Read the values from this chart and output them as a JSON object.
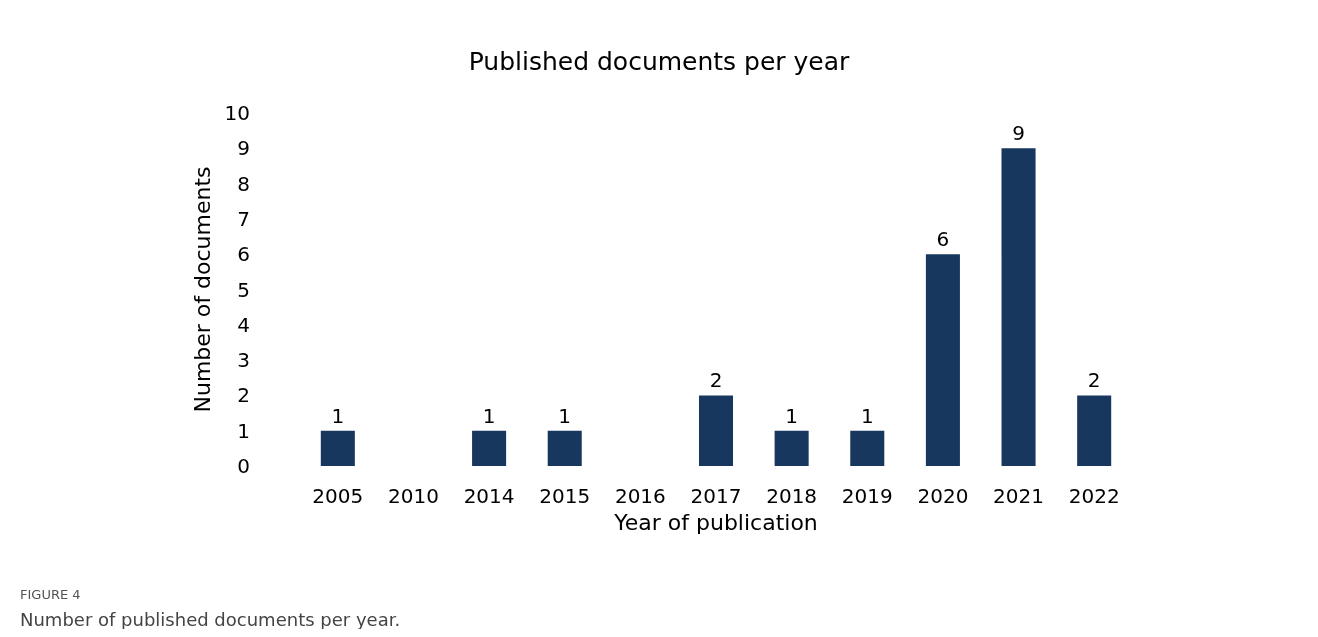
{
  "chart_data": {
    "type": "bar",
    "title": "Published documents per year",
    "xlabel": "Year of publication",
    "ylabel": "Number of documents",
    "categories": [
      "2005",
      "2010",
      "2014",
      "2015",
      "2016",
      "2017",
      "2018",
      "2019",
      "2020",
      "2021",
      "2022"
    ],
    "values": [
      1,
      0,
      1,
      1,
      0,
      2,
      1,
      1,
      6,
      9,
      2
    ],
    "value_labels": [
      "1",
      null,
      "1",
      "1",
      null,
      "2",
      "1",
      "1",
      "6",
      "9",
      "2"
    ],
    "color": "#17375e",
    "ylim": [
      0,
      10
    ],
    "yticks": [
      0,
      1,
      2,
      3,
      4,
      5,
      6,
      7,
      8,
      9,
      10
    ],
    "grid": false,
    "annotations": [
      "FIGURE 4",
      "Number of published documents per year."
    ]
  }
}
